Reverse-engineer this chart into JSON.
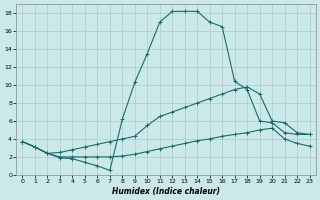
{
  "xlabel": "Humidex (Indice chaleur)",
  "xlim": [
    -0.5,
    23.5
  ],
  "ylim": [
    0,
    19
  ],
  "yticks": [
    0,
    2,
    4,
    6,
    8,
    10,
    12,
    14,
    16,
    18
  ],
  "xticks": [
    0,
    1,
    2,
    3,
    4,
    5,
    6,
    7,
    8,
    9,
    10,
    11,
    12,
    13,
    14,
    15,
    16,
    17,
    18,
    19,
    20,
    21,
    22,
    23
  ],
  "bg_color": "#cce9e9",
  "line_color": "#1a6b6b",
  "grid_color": "#aacccc",
  "line1_y": [
    3.7,
    3.1,
    2.4,
    1.9,
    1.8,
    1.4,
    1.0,
    0.5,
    6.2,
    10.3,
    13.5,
    17.0,
    18.2,
    18.2,
    18.2,
    17.0,
    16.5,
    10.4,
    9.5,
    6.0,
    5.8,
    4.7,
    4.5,
    4.5
  ],
  "line2_y": [
    3.7,
    3.1,
    2.4,
    2.5,
    2.8,
    3.1,
    3.4,
    3.7,
    4.0,
    4.3,
    5.5,
    6.5,
    7.0,
    7.5,
    8.0,
    8.5,
    9.0,
    9.5,
    9.8,
    9.0,
    6.0,
    5.8,
    4.7,
    4.5
  ],
  "line3_y": [
    3.7,
    3.1,
    2.4,
    2.0,
    2.0,
    2.0,
    2.0,
    2.0,
    2.1,
    2.3,
    2.6,
    2.9,
    3.2,
    3.5,
    3.8,
    4.0,
    4.3,
    4.5,
    4.7,
    5.0,
    5.2,
    4.0,
    3.5,
    3.2
  ]
}
